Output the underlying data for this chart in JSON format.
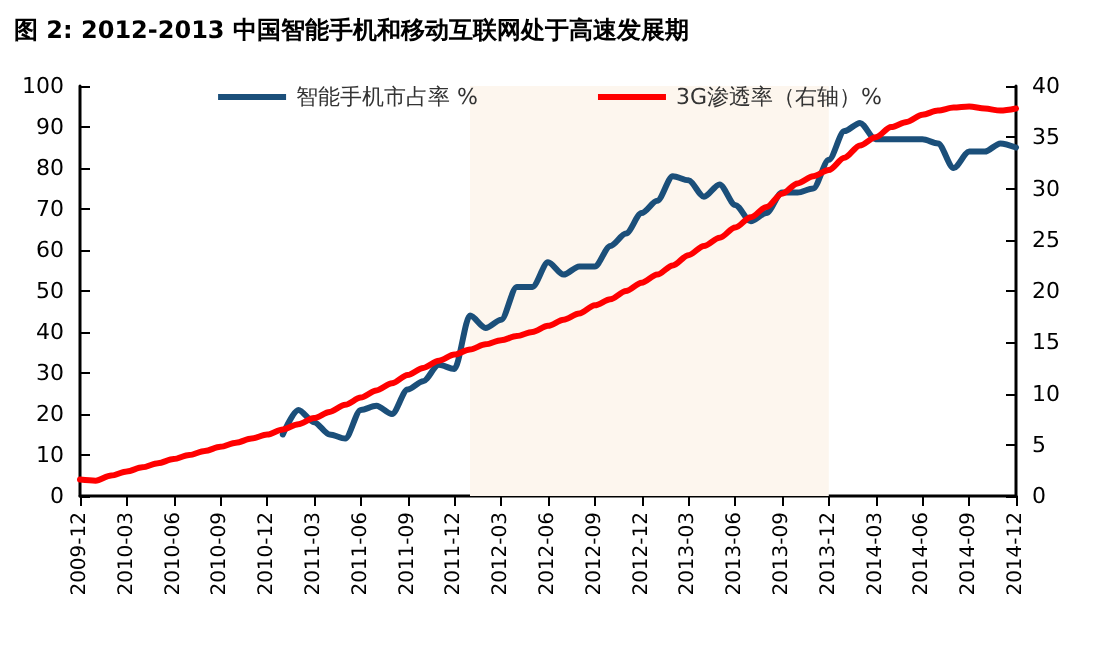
{
  "chart_data": {
    "type": "line",
    "title": "图 2: 2012-2013 中国智能手机和移动互联网处于高速发展期",
    "x": [
      "2009-12",
      "2010-01",
      "2010-02",
      "2010-03",
      "2010-04",
      "2010-05",
      "2010-06",
      "2010-07",
      "2010-08",
      "2010-09",
      "2010-10",
      "2010-11",
      "2010-12",
      "2011-01",
      "2011-02",
      "2011-03",
      "2011-04",
      "2011-05",
      "2011-06",
      "2011-07",
      "2011-08",
      "2011-09",
      "2011-10",
      "2011-11",
      "2011-12",
      "2012-01",
      "2012-02",
      "2012-03",
      "2012-04",
      "2012-05",
      "2012-06",
      "2012-07",
      "2012-08",
      "2012-09",
      "2012-10",
      "2012-11",
      "2012-12",
      "2013-01",
      "2013-02",
      "2013-03",
      "2013-04",
      "2013-05",
      "2013-06",
      "2013-07",
      "2013-08",
      "2013-09",
      "2013-10",
      "2013-11",
      "2013-12",
      "2014-01",
      "2014-02",
      "2014-03",
      "2014-04",
      "2014-05",
      "2014-06",
      "2014-07",
      "2014-08",
      "2014-09",
      "2014-10",
      "2014-11",
      "2014-12"
    ],
    "series": [
      {
        "name": "智能手机市占率 %",
        "color": "#1b4f7a",
        "values": [
          null,
          null,
          null,
          null,
          null,
          null,
          null,
          null,
          null,
          null,
          null,
          null,
          null,
          15,
          21,
          18,
          15,
          14,
          21,
          22,
          20,
          26,
          28,
          32,
          31,
          44,
          41,
          43,
          51,
          51,
          57,
          54,
          56,
          56,
          61,
          64,
          69,
          72,
          78,
          77,
          73,
          76,
          71,
          67,
          69,
          74,
          74,
          75,
          82,
          89,
          91,
          87,
          87,
          87,
          87,
          86,
          80,
          84,
          84,
          86,
          85
        ]
      },
      {
        "name": "3G渗透率（右轴）%",
        "color": "#ff0000",
        "axis": "y2",
        "values": [
          1.6,
          1.5,
          2,
          2.4,
          2.8,
          3.2,
          3.6,
          4,
          4.4,
          4.8,
          5.2,
          5.6,
          6,
          6.5,
          7,
          7.6,
          8.2,
          8.9,
          9.6,
          10.3,
          11,
          11.8,
          12.5,
          13.2,
          13.8,
          14.3,
          14.8,
          15.2,
          15.6,
          16,
          16.6,
          17.2,
          17.8,
          18.6,
          19.2,
          20,
          20.8,
          21.6,
          22.5,
          23.5,
          24.4,
          25.2,
          26.2,
          27.2,
          28.2,
          29.5,
          30.5,
          31.2,
          31.8,
          33,
          34.2,
          35,
          36,
          36.5,
          37.2,
          37.6,
          37.9,
          38,
          37.8,
          37.6,
          37.8
        ]
      }
    ],
    "xlim": [
      "2009-12",
      "2014-12"
    ],
    "xticks": [
      "2009-12",
      "2010-03",
      "2010-06",
      "2010-09",
      "2010-12",
      "2011-03",
      "2011-06",
      "2011-09",
      "2011-12",
      "2012-03",
      "2012-06",
      "2012-09",
      "2012-12",
      "2013-03",
      "2013-06",
      "2013-09",
      "2013-12",
      "2014-03",
      "2014-06",
      "2014-09",
      "2014-12"
    ],
    "ylim": [
      0,
      100
    ],
    "yticks": [
      0,
      10,
      20,
      30,
      40,
      50,
      60,
      70,
      80,
      90,
      100
    ],
    "y2lim": [
      0,
      40
    ],
    "y2ticks": [
      0,
      5,
      10,
      15,
      20,
      25,
      30,
      35,
      40
    ],
    "bands": [
      {
        "axis": "x",
        "from": "2012-01",
        "to": "2013-12",
        "color": "#fdf6ee"
      }
    ],
    "grid": false,
    "legend": "top",
    "marker": "none",
    "line_style": "solid"
  }
}
